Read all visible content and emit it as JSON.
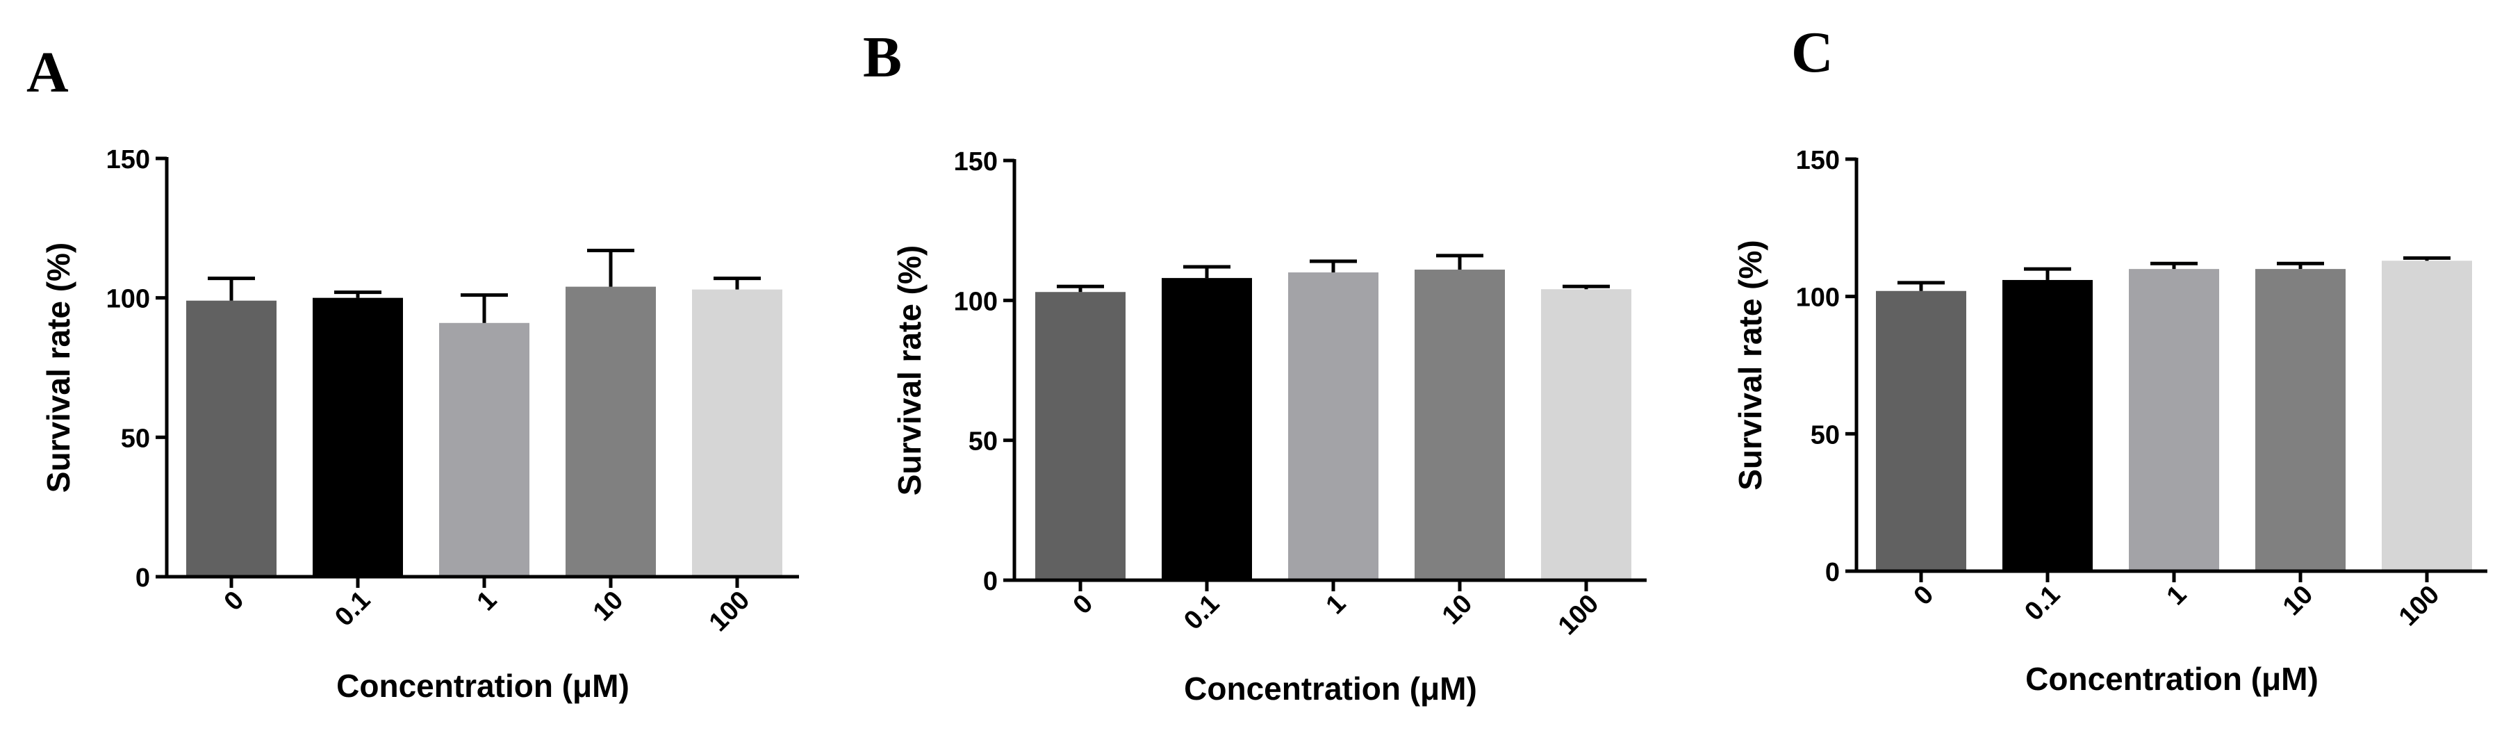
{
  "chart_data": [
    {
      "panel_label": "A",
      "type": "bar",
      "xlabel": "Concentration (μM)",
      "ylabel": "Survival rate (%)",
      "ylim": [
        0,
        150
      ],
      "yticks": [
        "0",
        "50",
        "100",
        "150"
      ],
      "categories": [
        "0",
        "0.1",
        "1",
        "10",
        "100"
      ],
      "values": [
        99,
        100,
        91,
        104,
        103
      ],
      "errors": [
        8,
        2,
        10,
        13,
        4
      ],
      "bar_colors": [
        "#616161",
        "#000000",
        "#a3a3a7",
        "#808080",
        "#d6d6d6"
      ],
      "grid": false,
      "legend": "none"
    },
    {
      "panel_label": "B",
      "type": "bar",
      "xlabel": "Concentration (μM)",
      "ylabel": "Survival rate (%)",
      "ylim": [
        0,
        150
      ],
      "yticks": [
        "0",
        "50",
        "100",
        "150"
      ],
      "categories": [
        "0",
        "0.1",
        "1",
        "10",
        "100"
      ],
      "values": [
        103,
        108,
        110,
        111,
        104
      ],
      "errors": [
        2,
        4,
        4,
        5,
        1
      ],
      "bar_colors": [
        "#616161",
        "#000000",
        "#a3a3a7",
        "#808080",
        "#d6d6d6"
      ],
      "grid": false,
      "legend": "none"
    },
    {
      "panel_label": "C",
      "type": "bar",
      "xlabel": "Concentration (μM)",
      "ylabel": "Survival rate (%)",
      "ylim": [
        0,
        150
      ],
      "yticks": [
        "0",
        "50",
        "100",
        "150"
      ],
      "categories": [
        "0",
        "0.1",
        "1",
        "10",
        "100"
      ],
      "values": [
        102,
        106,
        110,
        110,
        113
      ],
      "errors": [
        3,
        4,
        2,
        2,
        1
      ],
      "bar_colors": [
        "#616161",
        "#000000",
        "#a3a3a7",
        "#808080",
        "#d6d6d6"
      ],
      "grid": false,
      "legend": "none"
    }
  ]
}
